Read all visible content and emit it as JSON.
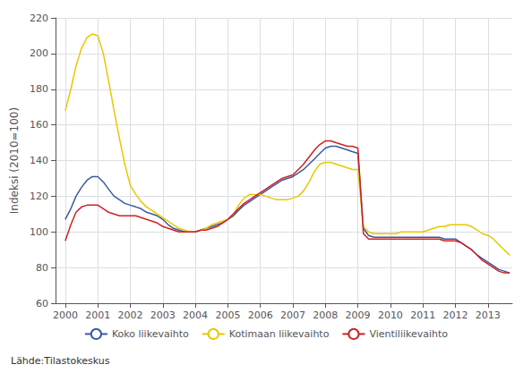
{
  "chart_data": {
    "type": "line",
    "title": "",
    "ylabel": "Indeksi (2010=100)",
    "annotations": [
      "Lähde:Tilastokeskus"
    ],
    "x": [
      2000.0,
      2000.17,
      2000.33,
      2000.5,
      2000.67,
      2000.83,
      2001.0,
      2001.17,
      2001.33,
      2001.5,
      2001.67,
      2001.83,
      2002.0,
      2002.17,
      2002.33,
      2002.5,
      2002.67,
      2002.83,
      2003.0,
      2003.17,
      2003.33,
      2003.5,
      2003.67,
      2003.83,
      2004.0,
      2004.17,
      2004.33,
      2004.5,
      2004.67,
      2004.83,
      2005.0,
      2005.17,
      2005.33,
      2005.5,
      2005.67,
      2005.83,
      2006.0,
      2006.17,
      2006.33,
      2006.5,
      2006.67,
      2006.83,
      2007.0,
      2007.17,
      2007.33,
      2007.5,
      2007.67,
      2007.83,
      2008.0,
      2008.17,
      2008.33,
      2008.5,
      2008.67,
      2008.83,
      2009.0,
      2009.17,
      2009.33,
      2009.5,
      2009.67,
      2009.83,
      2010.0,
      2010.17,
      2010.33,
      2010.5,
      2010.67,
      2010.83,
      2011.0,
      2011.17,
      2011.33,
      2011.5,
      2011.67,
      2011.83,
      2012.0,
      2012.17,
      2012.33,
      2012.5,
      2012.67,
      2012.83,
      2013.0,
      2013.17,
      2013.33,
      2013.5,
      2013.67
    ],
    "series": [
      {
        "name": "Koko liikevaihto",
        "color": "#3a5aa0",
        "values": [
          107,
          113,
          120,
          125,
          129,
          131,
          131,
          128,
          124,
          120,
          118,
          116,
          115,
          114,
          113,
          111,
          110,
          109,
          107,
          104,
          102,
          101,
          100,
          100,
          100,
          101,
          102,
          103,
          104,
          105,
          107,
          109,
          112,
          115,
          117,
          119,
          121,
          123,
          125,
          127,
          129,
          130,
          131,
          133,
          135,
          138,
          141,
          144,
          147,
          148,
          148,
          147,
          146,
          145,
          144,
          102,
          98,
          97,
          97,
          97,
          97,
          97,
          97,
          97,
          97,
          97,
          97,
          97,
          97,
          97,
          96,
          96,
          96,
          94,
          92,
          90,
          87,
          85,
          83,
          81,
          79,
          78,
          77
        ]
      },
      {
        "name": "Kotimaan liikevaihto",
        "color": "#e8c800",
        "values": [
          168,
          180,
          193,
          203,
          209,
          211,
          210,
          200,
          185,
          168,
          152,
          138,
          126,
          121,
          117,
          114,
          112,
          110,
          108,
          106,
          104,
          102,
          101,
          100,
          100,
          101,
          102,
          104,
          105,
          106,
          107,
          110,
          115,
          119,
          121,
          121,
          121,
          120,
          119,
          118,
          118,
          118,
          119,
          120,
          123,
          128,
          134,
          138,
          139,
          139,
          138,
          137,
          136,
          135,
          135,
          103,
          100,
          99,
          99,
          99,
          99,
          99,
          100,
          100,
          100,
          100,
          100,
          101,
          102,
          103,
          103,
          104,
          104,
          104,
          104,
          103,
          101,
          99,
          98,
          96,
          93,
          90,
          87
        ]
      },
      {
        "name": "Vientiliikevaihto",
        "color": "#cc2222",
        "values": [
          95,
          104,
          111,
          114,
          115,
          115,
          115,
          113,
          111,
          110,
          109,
          109,
          109,
          109,
          108,
          107,
          106,
          105,
          103,
          102,
          101,
          100,
          100,
          100,
          100,
          101,
          101,
          102,
          103,
          105,
          107,
          110,
          113,
          116,
          118,
          120,
          122,
          124,
          126,
          128,
          130,
          131,
          132,
          135,
          138,
          142,
          146,
          149,
          151,
          151,
          150,
          149,
          148,
          148,
          147,
          99,
          96,
          96,
          96,
          96,
          96,
          96,
          96,
          96,
          96,
          96,
          96,
          96,
          96,
          96,
          95,
          95,
          95,
          94,
          92,
          90,
          87,
          84,
          82,
          80,
          78,
          77,
          77
        ]
      }
    ],
    "xlim": [
      1999.7,
      2013.75
    ],
    "xticks": [
      2000,
      2001,
      2002,
      2003,
      2004,
      2005,
      2006,
      2007,
      2008,
      2009,
      2010,
      2011,
      2012,
      2013
    ],
    "ylim": [
      60,
      220
    ],
    "yticks": [
      60,
      80,
      100,
      120,
      140,
      160,
      180,
      200,
      220
    ],
    "grid": true,
    "legend": "bottom"
  }
}
